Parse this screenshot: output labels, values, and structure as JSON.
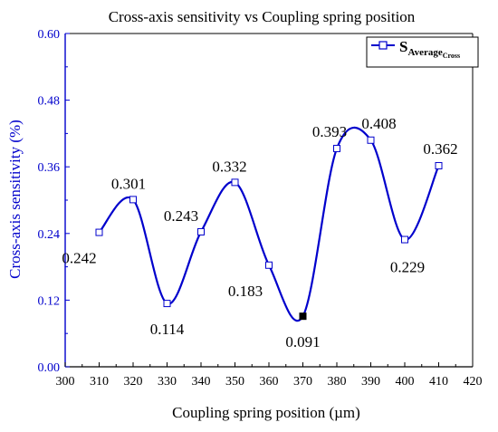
{
  "chart_data": {
    "type": "line",
    "title": "Cross-axis sensitivity vs Coupling spring position",
    "xlabel": "Coupling spring position (µm)",
    "ylabel": "Cross-axis sensitivity (%)",
    "xlim": [
      300,
      420
    ],
    "ylim": [
      0,
      0.6
    ],
    "x_ticks": [
      "300",
      "310",
      "320",
      "330",
      "340",
      "350",
      "360",
      "370",
      "380",
      "390",
      "400",
      "410",
      "420"
    ],
    "y_ticks": [
      "0.00",
      "0.12",
      "0.24",
      "0.36",
      "0.48",
      "0.60"
    ],
    "grid": false,
    "legend": {
      "placement": "top-right",
      "symbol": "S",
      "subscript": "Average",
      "sub_subscript": "Cross"
    },
    "series": [
      {
        "color": "#0000cc",
        "x": [
          310,
          320,
          330,
          340,
          350,
          360,
          370,
          380,
          390,
          400,
          410
        ],
        "y": [
          0.242,
          0.301,
          0.114,
          0.243,
          0.332,
          0.183,
          0.091,
          0.393,
          0.408,
          0.229,
          0.362
        ],
        "labels": [
          "0.242",
          "0.301",
          "0.114",
          "0.243",
          "0.332",
          "0.183",
          "0.091",
          "0.393",
          "0.408",
          "0.229",
          "0.362"
        ],
        "highlight_index": 6
      }
    ],
    "colors": {
      "axis_y": "#0000cc",
      "axis_x": "#000000",
      "series": "#0000cc",
      "marker_fill": "#ffffff",
      "highlight_fill": "#000000"
    }
  }
}
